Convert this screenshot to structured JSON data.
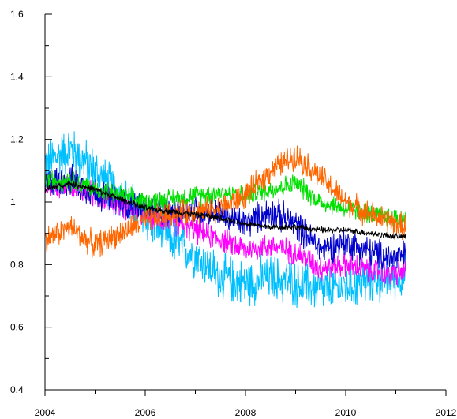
{
  "chart_data": {
    "type": "line",
    "title": "",
    "xlabel": "",
    "ylabel": "",
    "xlim": [
      2004,
      2012
    ],
    "ylim": [
      0.4,
      1.6
    ],
    "x_ticks": [
      2004,
      2006,
      2008,
      2010,
      2012
    ],
    "x_tick_labels": [
      "2004",
      "2006",
      "2008",
      "2010",
      "2012"
    ],
    "y_ticks": [
      0.4,
      0.6,
      0.8,
      1.0,
      1.2,
      1.4,
      1.6
    ],
    "y_tick_labels": [
      "0.4",
      "0.6",
      "0.8",
      "1",
      "1.2",
      "1.4",
      "1.6"
    ],
    "grid": false,
    "legend": "none",
    "x": [
      2004.0,
      2004.5,
      2005.0,
      2005.5,
      2006.0,
      2006.5,
      2007.0,
      2007.5,
      2008.0,
      2008.5,
      2009.0,
      2009.5,
      2010.0,
      2010.5,
      2011.0,
      2011.2
    ],
    "series": [
      {
        "color": "#00bfff",
        "noise": 0.09,
        "values": [
          1.12,
          1.17,
          1.1,
          1.02,
          0.95,
          0.88,
          0.83,
          0.76,
          0.74,
          0.76,
          0.74,
          0.72,
          0.73,
          0.75,
          0.76,
          0.77
        ]
      },
      {
        "color": "#ff00ff",
        "noise": 0.05,
        "values": [
          1.05,
          1.06,
          1.02,
          0.99,
          0.96,
          0.94,
          0.91,
          0.88,
          0.85,
          0.86,
          0.84,
          0.79,
          0.8,
          0.78,
          0.77,
          0.78
        ]
      },
      {
        "color": "#0000cd",
        "noise": 0.06,
        "values": [
          1.06,
          1.07,
          1.03,
          1.0,
          0.98,
          0.97,
          0.98,
          0.96,
          0.93,
          0.97,
          0.93,
          0.85,
          0.87,
          0.84,
          0.82,
          0.83
        ]
      },
      {
        "color": "#00e000",
        "noise": 0.04,
        "values": [
          1.07,
          1.07,
          1.04,
          1.02,
          1.0,
          1.01,
          1.02,
          1.03,
          1.02,
          1.04,
          1.06,
          1.0,
          0.98,
          0.96,
          0.95,
          0.95
        ]
      },
      {
        "color": "#ff6600",
        "noise": 0.05,
        "values": [
          0.88,
          0.92,
          0.86,
          0.9,
          0.94,
          0.96,
          0.97,
          0.98,
          1.02,
          1.1,
          1.15,
          1.08,
          1.0,
          0.96,
          0.93,
          0.92
        ]
      },
      {
        "color": "#000000",
        "noise": 0.012,
        "values": [
          1.04,
          1.06,
          1.04,
          1.01,
          0.98,
          0.97,
          0.96,
          0.95,
          0.93,
          0.92,
          0.92,
          0.91,
          0.91,
          0.9,
          0.89,
          0.89
        ]
      }
    ]
  }
}
